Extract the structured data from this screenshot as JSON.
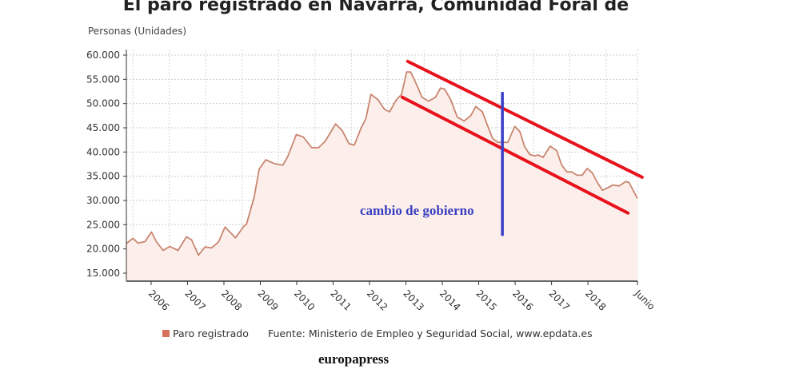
{
  "chart_data": {
    "type": "area",
    "title": "El paro registrado en Navarra, Comunidad Foral de",
    "ylabel": "Personas (Unidades)",
    "xlabel": "",
    "ylim": [
      13300,
      60000
    ],
    "xlim": [
      2005.32,
      2019.36
    ],
    "yticks": [
      15000,
      20000,
      25000,
      30000,
      35000,
      40000,
      45000,
      50000,
      55000,
      60000
    ],
    "ytick_labels": [
      "15.000",
      "20.000",
      "25.000",
      "30.000",
      "35.000",
      "40.000",
      "45.000",
      "50.000",
      "55.000",
      "60.000"
    ],
    "xticks": [
      2006,
      2007,
      2008,
      2009,
      2010,
      2011,
      2012,
      2013,
      2014,
      2015,
      2016,
      2017,
      2018,
      2019.36
    ],
    "xtick_labels": [
      "2006",
      "2007",
      "2008",
      "2009",
      "2010",
      "2011",
      "2012",
      "2013",
      "2014",
      "2015",
      "2016",
      "2017",
      "2018",
      "Junio"
    ],
    "grid": true,
    "legend_position": "bottom",
    "series": [
      {
        "name": "Paro registrado",
        "color": "#c98670",
        "fill": "#fcefeb",
        "x": [
          2005.32,
          2005.5,
          2005.64,
          2005.83,
          2006.01,
          2006.15,
          2006.33,
          2006.51,
          2006.74,
          2006.97,
          2007.11,
          2007.3,
          2007.48,
          2007.66,
          2007.85,
          2008.03,
          2008.32,
          2008.55,
          2008.62,
          2008.83,
          2008.97,
          2009.15,
          2009.39,
          2009.62,
          2009.76,
          2009.99,
          2010.18,
          2010.41,
          2010.6,
          2010.78,
          2011.07,
          2011.25,
          2011.44,
          2011.58,
          2011.77,
          2011.9,
          2012.04,
          2012.23,
          2012.41,
          2012.55,
          2012.74,
          2012.88,
          2013.02,
          2013.13,
          2013.3,
          2013.44,
          2013.62,
          2013.81,
          2013.95,
          2014.06,
          2014.23,
          2014.41,
          2014.6,
          2014.78,
          2014.92,
          2015.1,
          2015.24,
          2015.38,
          2015.52,
          2015.8,
          2015.99,
          2016.13,
          2016.26,
          2016.4,
          2016.54,
          2016.63,
          2016.77,
          2016.96,
          2017.14,
          2017.28,
          2017.42,
          2017.56,
          2017.7,
          2017.84,
          2017.98,
          2018.12,
          2018.26,
          2018.4,
          2018.54,
          2018.68,
          2018.86,
          2019.04,
          2019.13,
          2019.36
        ],
        "values": [
          21100,
          22200,
          21200,
          21500,
          23500,
          21400,
          19700,
          20500,
          19700,
          22500,
          21900,
          18700,
          20400,
          20200,
          21400,
          24500,
          22300,
          24700,
          25100,
          30700,
          36500,
          38400,
          37600,
          37300,
          39200,
          43600,
          43100,
          40900,
          40900,
          42200,
          45800,
          44400,
          41700,
          41400,
          45000,
          46900,
          51900,
          50800,
          48800,
          48300,
          50800,
          51900,
          56500,
          56500,
          53800,
          51300,
          50500,
          51300,
          53200,
          53000,
          50800,
          47200,
          46400,
          47500,
          49400,
          48300,
          45500,
          42800,
          42000,
          42000,
          45300,
          44200,
          41100,
          39500,
          39200,
          39400,
          38900,
          41200,
          40300,
          37300,
          35900,
          35900,
          35200,
          35200,
          36600,
          35700,
          33700,
          32100,
          32600,
          33200,
          33000,
          33900,
          33700,
          30400
        ]
      }
    ],
    "annotations": {
      "text": "cambio de gobierno",
      "government_change_line": {
        "x": 2015.65,
        "y": [
          22700,
          52400
        ],
        "color": "#3a3fc8"
      },
      "trend_upper": {
        "x": [
          2013.05,
          2019.49
        ],
        "y": [
          58700,
          34800
        ],
        "color": "#e8121c"
      },
      "trend_lower": {
        "x": [
          2012.9,
          2019.1
        ],
        "y": [
          51300,
          27400
        ],
        "color": "#e8121c"
      }
    },
    "legend": {
      "label": "Paro registrado",
      "color": "#d9705e"
    },
    "source": "Fuente: Ministerio de Empleo y Seguridad Social, www.epdata.es",
    "brand": "europapress"
  }
}
